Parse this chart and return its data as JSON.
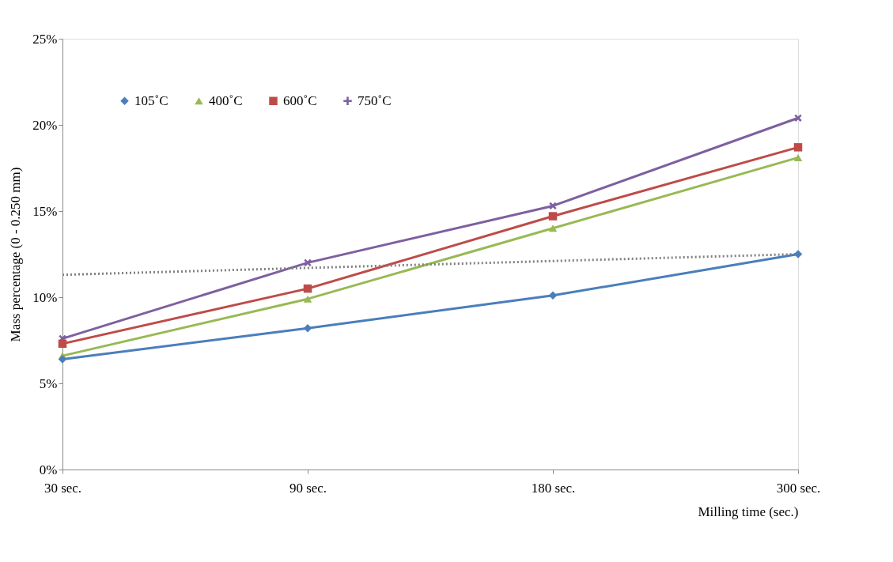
{
  "chart_data": {
    "type": "line",
    "xlabel": "Milling time (sec.)",
    "ylabel": "Mass percentage (0 - 0.250 mm)",
    "categories": [
      "30 sec.",
      "90 sec.",
      "180 sec.",
      "300 sec."
    ],
    "series": [
      {
        "name": "105˚C",
        "color": "#4a7ebb",
        "marker": "diamond",
        "values": [
          6.4,
          8.2,
          10.1,
          12.5
        ]
      },
      {
        "name": "400˚C",
        "color": "#98b954",
        "marker": "triangle",
        "values": [
          6.6,
          9.9,
          14.0,
          18.1
        ]
      },
      {
        "name": "600˚C",
        "color": "#be4b48",
        "marker": "square",
        "values": [
          7.3,
          10.5,
          14.7,
          18.7
        ]
      },
      {
        "name": "750˚C",
        "color": "#7d60a0",
        "marker": "cross",
        "values": [
          7.6,
          12.0,
          15.3,
          20.4
        ]
      },
      {
        "color": "#808080",
        "marker": "none",
        "line_style": "dotted",
        "values": [
          11.3,
          11.7,
          12.1,
          12.5
        ]
      }
    ],
    "ylim": [
      0,
      25
    ],
    "yticks": [
      {
        "value": 0,
        "label": "0%"
      },
      {
        "value": 5,
        "label": "5%"
      },
      {
        "value": 10,
        "label": "10%"
      },
      {
        "value": 15,
        "label": "15%"
      },
      {
        "value": 20,
        "label": "20%"
      },
      {
        "value": 25,
        "label": "25%"
      }
    ],
    "grid": false,
    "legend": "top left",
    "line_style": "solid"
  }
}
